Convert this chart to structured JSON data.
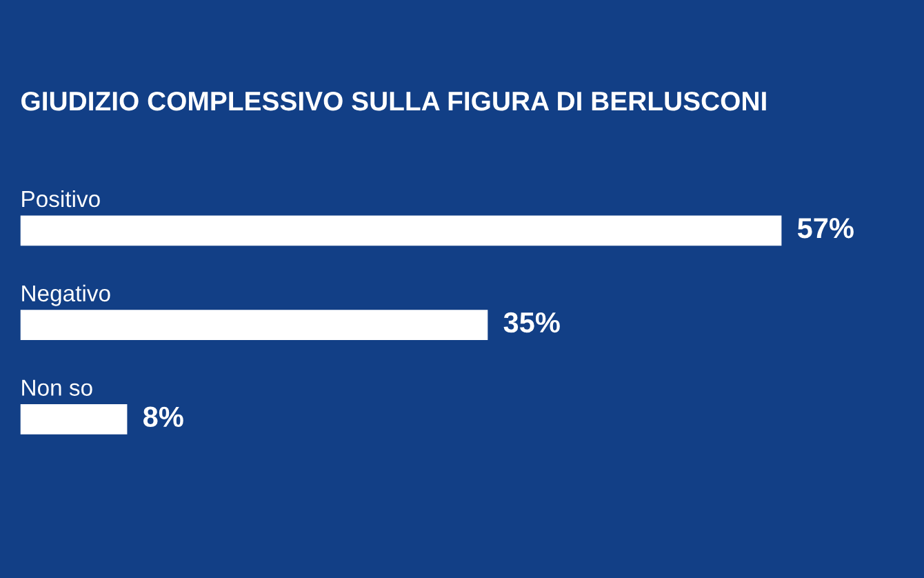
{
  "chart_data": {
    "type": "bar",
    "orientation": "horizontal",
    "title": "GIUDIZIO COMPLESSIVO SULLA FIGURA DI BERLUSCONI",
    "categories": [
      "Positivo",
      "Negativo",
      "Non so"
    ],
    "values": [
      57,
      35,
      8
    ],
    "value_labels": [
      "57%",
      "35%",
      "8%"
    ],
    "color": "#ffffff"
  }
}
